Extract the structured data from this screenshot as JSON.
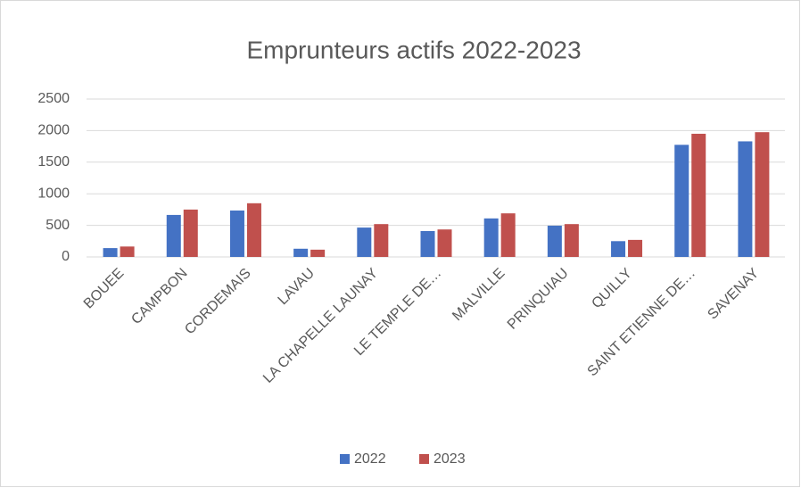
{
  "chart_data": {
    "type": "bar",
    "title": "Emprunteurs actifs 2022-2023",
    "categories": [
      "BOUEE",
      "CAMPBON",
      "CORDEMAIS",
      "LAVAU",
      "LA CHAPELLE LAUNAY",
      "LE TEMPLE DE…",
      "MALVILLE",
      "PRINQUIAU",
      "QUILLY",
      "SAINT ETIENNE DE…",
      "SAVENAY"
    ],
    "series": [
      {
        "name": "2022",
        "color": "#4472c4",
        "values": [
          140,
          665,
          735,
          130,
          465,
          410,
          610,
          495,
          250,
          1775,
          1830
        ]
      },
      {
        "name": "2023",
        "color": "#c0504d",
        "values": [
          165,
          750,
          850,
          115,
          520,
          435,
          690,
          520,
          270,
          1950,
          1975
        ]
      }
    ],
    "ylim": [
      0,
      2500
    ],
    "yticks": [
      0,
      500,
      1000,
      1500,
      2000,
      2500
    ],
    "grid": true,
    "legend": "bottom"
  }
}
